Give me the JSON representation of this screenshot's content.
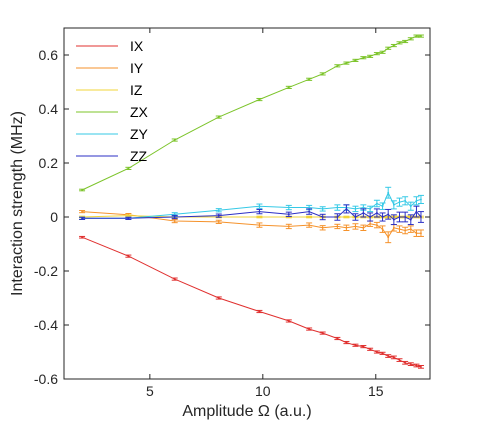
{
  "chart_data": {
    "type": "line",
    "xlabel": "Amplitude Ω (a.u.)",
    "ylabel": "Interaction strength (MHz)",
    "xlim": [
      1.2,
      17.4
    ],
    "ylim": [
      -0.6,
      0.7
    ],
    "xticks": [
      5,
      10,
      15
    ],
    "yticks": [
      -0.6,
      -0.4,
      -0.2,
      0,
      0.2,
      0.4,
      0.6
    ],
    "xtick_labels": [
      "5",
      "10",
      "15"
    ],
    "ytick_labels": [
      "-0.6",
      "-0.4",
      "-0.2",
      "0",
      "0.2",
      "0.4",
      "0.6"
    ],
    "grid": false,
    "legend_position": "top-left",
    "error_bars": true,
    "series": [
      {
        "name": "IX",
        "color": "#e0302f",
        "x": [
          2.0,
          4.05,
          6.1,
          8.05,
          9.85,
          11.15,
          12.05,
          12.65,
          13.3,
          13.7,
          14.1,
          14.45,
          14.75,
          15.05,
          15.3,
          15.55,
          15.8,
          16.05,
          16.3,
          16.55,
          16.8,
          17.0
        ],
        "y": [
          -0.075,
          -0.145,
          -0.23,
          -0.3,
          -0.35,
          -0.385,
          -0.415,
          -0.43,
          -0.45,
          -0.465,
          -0.475,
          -0.48,
          -0.49,
          -0.5,
          -0.505,
          -0.515,
          -0.52,
          -0.53,
          -0.54,
          -0.545,
          -0.55,
          -0.555
        ],
        "err": [
          0.003,
          0.004,
          0.004,
          0.004,
          0.004,
          0.004,
          0.004,
          0.004,
          0.004,
          0.004,
          0.004,
          0.004,
          0.004,
          0.004,
          0.004,
          0.005,
          0.005,
          0.005,
          0.005,
          0.005,
          0.005,
          0.005
        ]
      },
      {
        "name": "IY",
        "color": "#f5922b",
        "x": [
          2.0,
          4.05,
          6.1,
          8.05,
          9.85,
          11.15,
          12.05,
          12.65,
          13.3,
          13.7,
          14.1,
          14.45,
          14.75,
          15.05,
          15.3,
          15.55,
          15.8,
          16.05,
          16.3,
          16.55,
          16.8,
          17.0
        ],
        "y": [
          0.02,
          0.008,
          -0.015,
          -0.018,
          -0.03,
          -0.035,
          -0.03,
          -0.04,
          -0.035,
          -0.04,
          -0.035,
          -0.04,
          -0.025,
          -0.03,
          -0.045,
          -0.075,
          -0.04,
          -0.045,
          -0.05,
          -0.045,
          -0.06,
          -0.06
        ],
        "err": [
          0.004,
          0.005,
          0.006,
          0.006,
          0.008,
          0.008,
          0.008,
          0.008,
          0.008,
          0.01,
          0.01,
          0.01,
          0.01,
          0.01,
          0.012,
          0.02,
          0.012,
          0.012,
          0.012,
          0.012,
          0.012,
          0.012
        ]
      },
      {
        "name": "IZ",
        "color": "#f2d43a",
        "x": [
          2.0,
          4.05,
          6.1,
          8.05,
          9.85,
          11.15,
          12.05,
          12.65,
          13.3,
          13.7,
          14.1,
          14.45,
          14.75,
          15.05,
          15.3,
          15.55,
          15.8,
          16.05,
          16.3,
          16.55,
          16.8,
          17.0
        ],
        "y": [
          0.0,
          0.005,
          0.0,
          0.0,
          0.0,
          0.0,
          0.0,
          0.0,
          0.0,
          0.0,
          0.0,
          0.0,
          0.0,
          0.0,
          0.0,
          0.0,
          0.0,
          0.0,
          0.0,
          0.0,
          0.0,
          0.0
        ],
        "err": [
          0.003,
          0.003,
          0.003,
          0.003,
          0.003,
          0.003,
          0.003,
          0.003,
          0.003,
          0.003,
          0.003,
          0.003,
          0.003,
          0.003,
          0.003,
          0.003,
          0.003,
          0.003,
          0.003,
          0.003,
          0.003,
          0.003
        ]
      },
      {
        "name": "ZX",
        "color": "#7cc42a",
        "x": [
          2.0,
          4.05,
          6.1,
          8.05,
          9.85,
          11.15,
          12.05,
          12.65,
          13.3,
          13.7,
          14.1,
          14.45,
          14.75,
          15.05,
          15.3,
          15.55,
          15.8,
          16.05,
          16.3,
          16.55,
          16.8,
          17.0
        ],
        "y": [
          0.1,
          0.18,
          0.285,
          0.37,
          0.435,
          0.48,
          0.51,
          0.53,
          0.56,
          0.57,
          0.58,
          0.59,
          0.595,
          0.605,
          0.61,
          0.625,
          0.635,
          0.645,
          0.65,
          0.66,
          0.67,
          0.67
        ],
        "err": [
          0.003,
          0.004,
          0.004,
          0.004,
          0.004,
          0.004,
          0.004,
          0.004,
          0.004,
          0.004,
          0.004,
          0.004,
          0.004,
          0.004,
          0.004,
          0.004,
          0.004,
          0.004,
          0.004,
          0.004,
          0.004,
          0.004
        ]
      },
      {
        "name": "ZY",
        "color": "#35c9e6",
        "x": [
          2.0,
          4.05,
          6.1,
          8.05,
          9.85,
          11.15,
          12.05,
          12.65,
          13.3,
          13.7,
          14.1,
          14.45,
          14.75,
          15.05,
          15.3,
          15.55,
          15.8,
          16.05,
          16.3,
          16.55,
          16.8,
          17.0
        ],
        "y": [
          -0.005,
          -0.005,
          0.01,
          0.025,
          0.04,
          0.035,
          0.035,
          0.03,
          0.035,
          0.035,
          0.03,
          0.035,
          0.03,
          0.05,
          0.04,
          0.09,
          0.045,
          0.055,
          0.06,
          0.04,
          0.06,
          0.065
        ],
        "err": [
          0.004,
          0.004,
          0.006,
          0.006,
          0.008,
          0.008,
          0.008,
          0.008,
          0.01,
          0.01,
          0.01,
          0.01,
          0.01,
          0.012,
          0.012,
          0.02,
          0.015,
          0.015,
          0.015,
          0.015,
          0.015,
          0.015
        ]
      },
      {
        "name": "ZZ",
        "color": "#2b2fc4",
        "x": [
          2.0,
          4.05,
          6.1,
          8.05,
          9.85,
          11.15,
          12.05,
          12.65,
          13.3,
          13.7,
          14.1,
          14.45,
          14.75,
          15.05,
          15.3,
          15.55,
          15.8,
          16.05,
          16.3,
          16.55,
          16.8,
          17.0
        ],
        "y": [
          -0.005,
          -0.005,
          0.0,
          0.005,
          0.02,
          0.01,
          0.02,
          0.0,
          0.0,
          0.03,
          0.0,
          0.015,
          0.0,
          0.015,
          0.0,
          0.01,
          -0.01,
          0.0,
          0.0,
          -0.01,
          0.02,
          0.0
        ],
        "err": [
          0.004,
          0.004,
          0.006,
          0.006,
          0.008,
          0.008,
          0.01,
          0.01,
          0.012,
          0.015,
          0.012,
          0.015,
          0.015,
          0.015,
          0.015,
          0.018,
          0.018,
          0.018,
          0.018,
          0.018,
          0.02,
          0.02
        ]
      }
    ]
  }
}
